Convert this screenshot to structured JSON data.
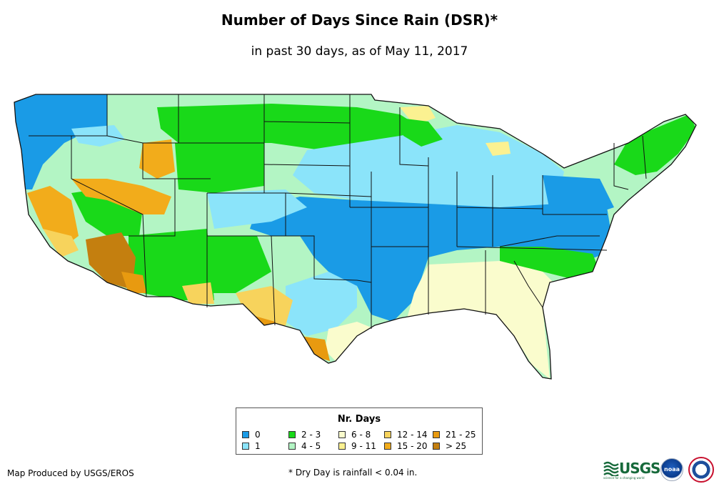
{
  "title": "Number of Days Since Rain (DSR)*",
  "subtitle": "in past 30 days, as of May 11, 2017",
  "legend": {
    "title": "Nr. Days",
    "items": [
      {
        "label": "0",
        "color": "#1a9be6"
      },
      {
        "label": "1",
        "color": "#8be4fa"
      },
      {
        "label": "2 - 3",
        "color": "#19d919"
      },
      {
        "label": "4 - 5",
        "color": "#b3f5c4"
      },
      {
        "label": "6 - 8",
        "color": "#fafccd"
      },
      {
        "label": "9 - 11",
        "color": "#fbf191"
      },
      {
        "label": "12 - 14",
        "color": "#f7d35c"
      },
      {
        "label": "15 - 20",
        "color": "#f2ac1b"
      },
      {
        "label": "21 - 25",
        "color": "#e89a10"
      },
      {
        "label": "> 25",
        "color": "#c47f0f"
      }
    ]
  },
  "credit": "Map Produced by USGS/EROS",
  "footnote": "* Dry Day is rainfall < 0.04 in.",
  "logos": {
    "usgs": "USGS",
    "usgs_tagline": "science for a changing world",
    "noaa": "noaa"
  }
}
